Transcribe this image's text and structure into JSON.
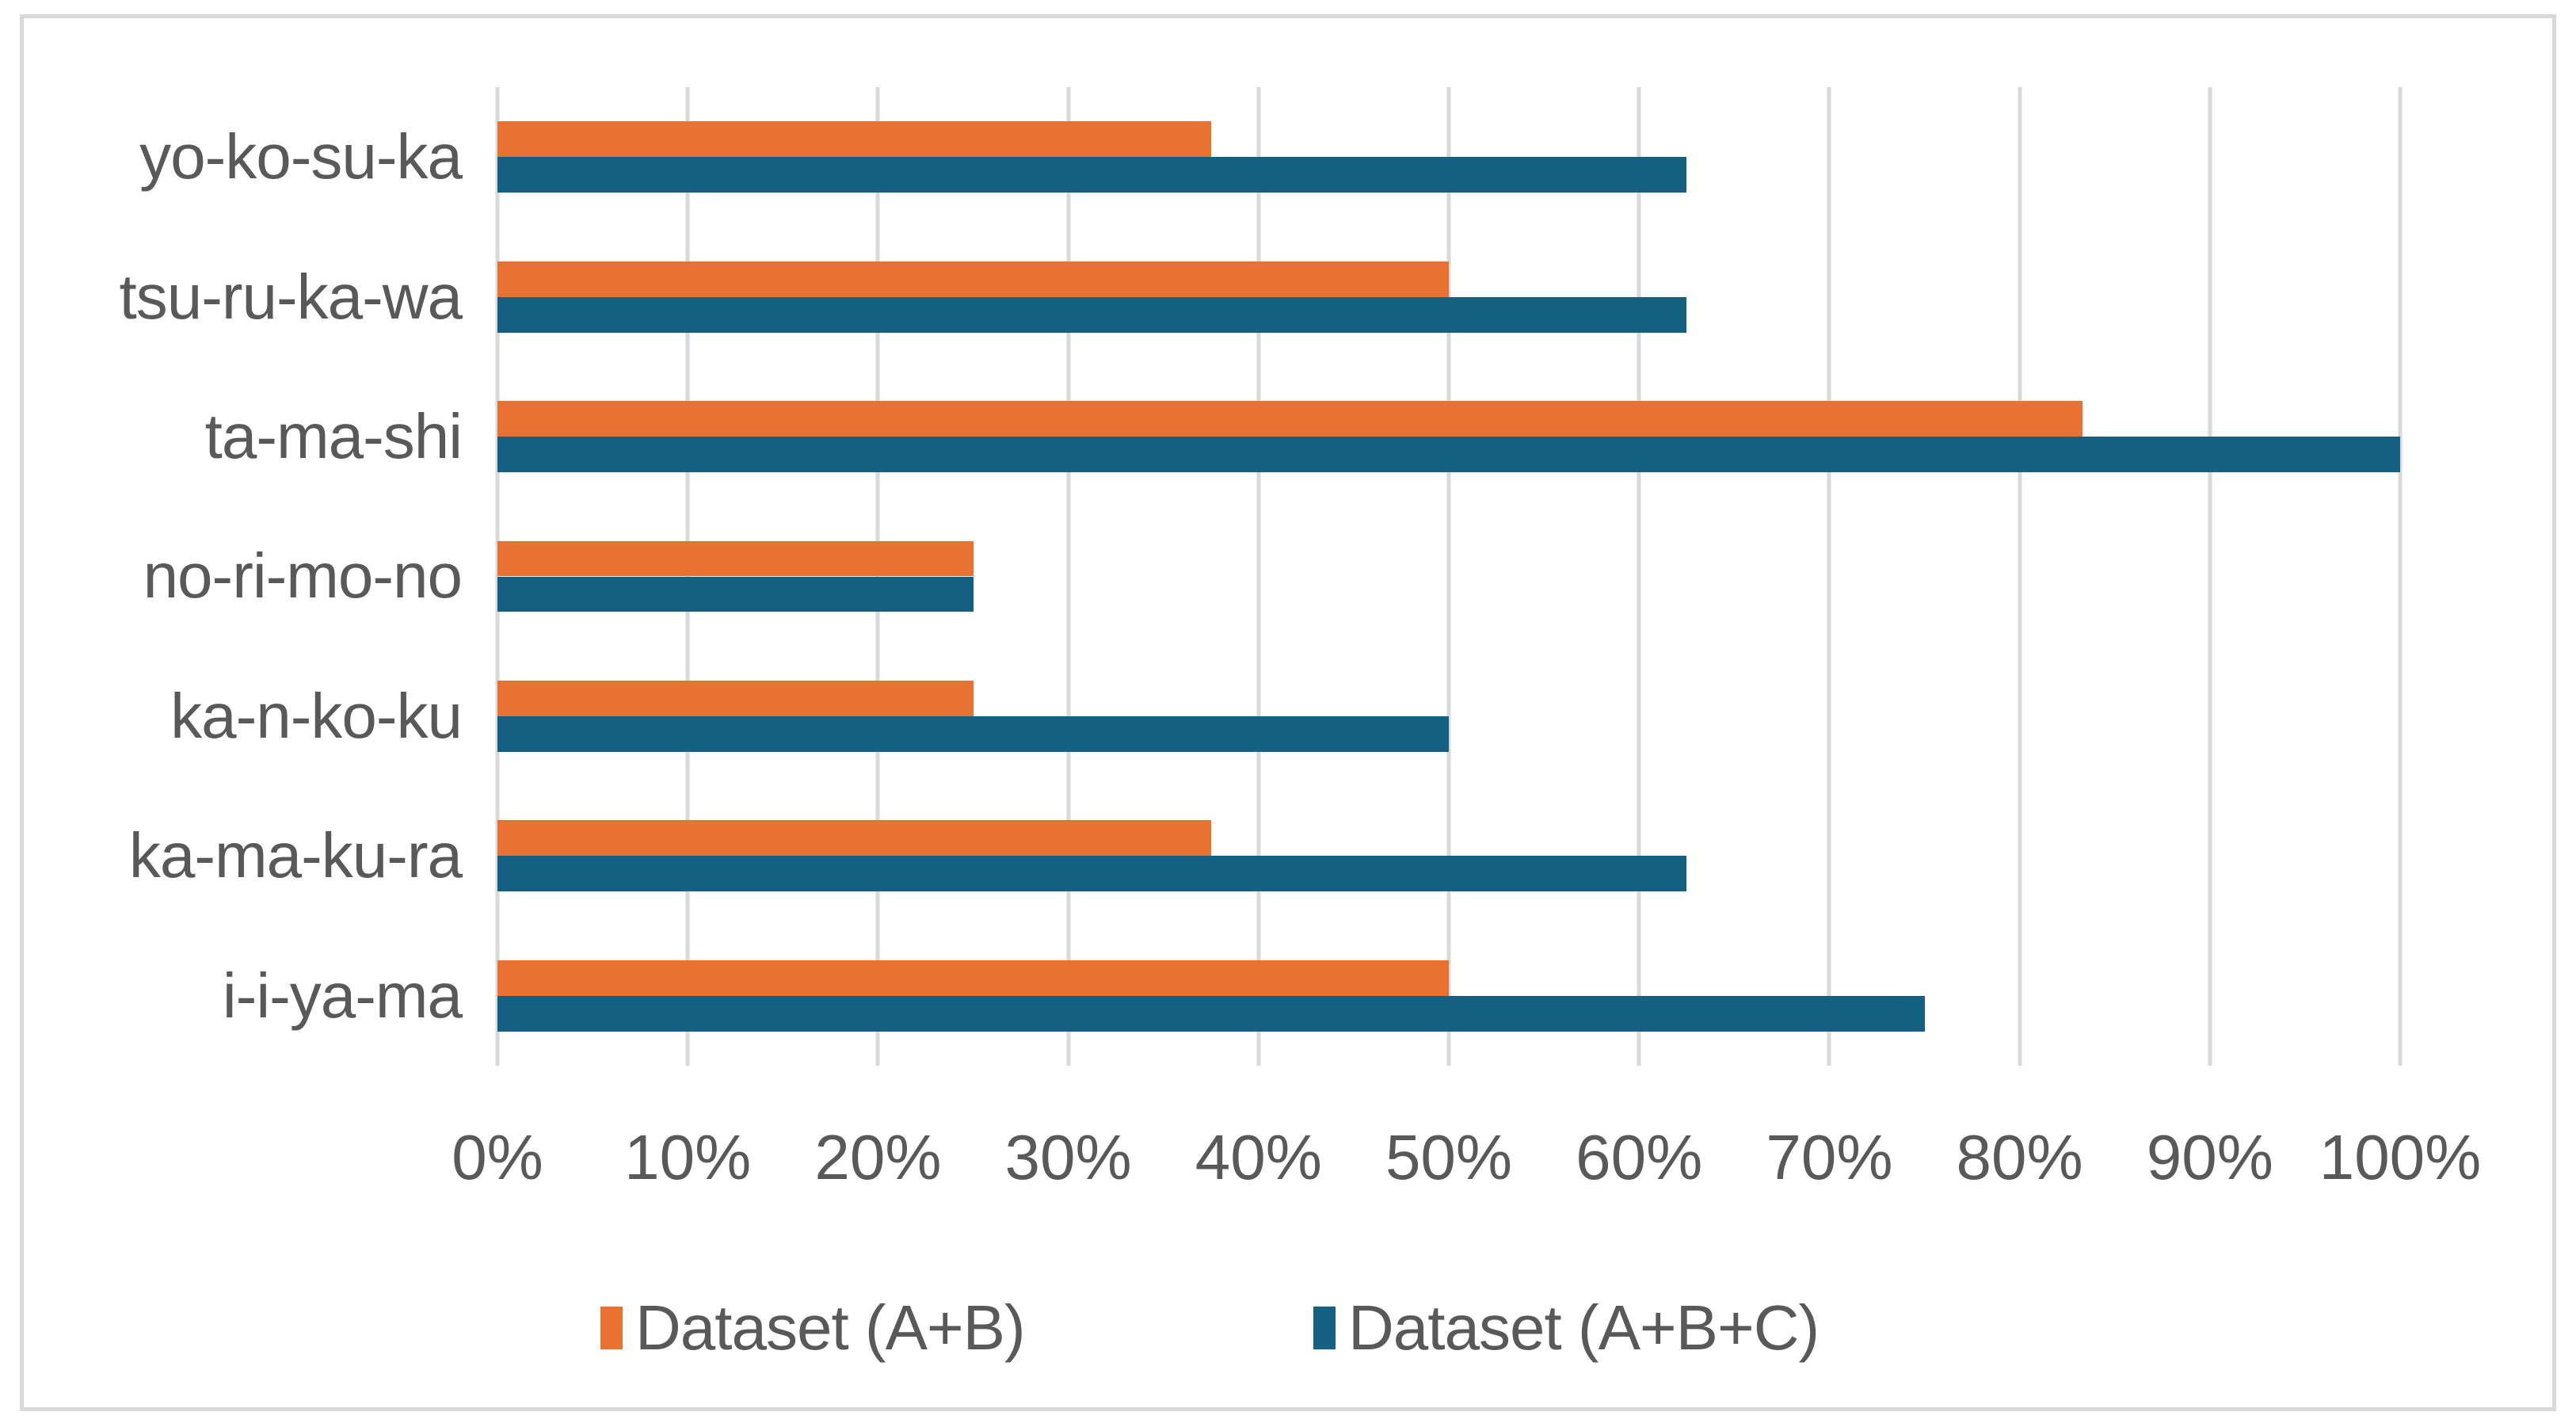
{
  "chart_data": {
    "type": "bar",
    "orientation": "horizontal",
    "title": "",
    "xlabel": "",
    "ylabel": "",
    "categories": [
      "yo-ko-su-ka",
      "tsu-ru-ka-wa",
      "ta-ma-shi",
      "no-ri-mo-no",
      "ka-n-ko-ku",
      "ka-ma-ku-ra",
      "i-i-ya-ma"
    ],
    "series": [
      {
        "name": "Dataset (A+B)",
        "color": "#E97132",
        "values": [
          37.5,
          50,
          83.3,
          25,
          25,
          37.5,
          50
        ]
      },
      {
        "name": "Dataset (A+B+C)",
        "color": "#156082",
        "values": [
          62.5,
          62.5,
          100,
          25,
          50,
          62.5,
          75
        ]
      }
    ],
    "x_axis": {
      "min": 0,
      "max": 100,
      "tick_step": 10,
      "tick_labels": [
        "0%",
        "10%",
        "20%",
        "30%",
        "40%",
        "50%",
        "60%",
        "70%",
        "80%",
        "90%",
        "100%"
      ]
    },
    "grid": true,
    "legend_position": "bottom"
  },
  "colors": {
    "grid": "#D9D9D9",
    "frame_border": "#D9D9D9",
    "text": "#595959",
    "background": "#FFFFFF"
  }
}
